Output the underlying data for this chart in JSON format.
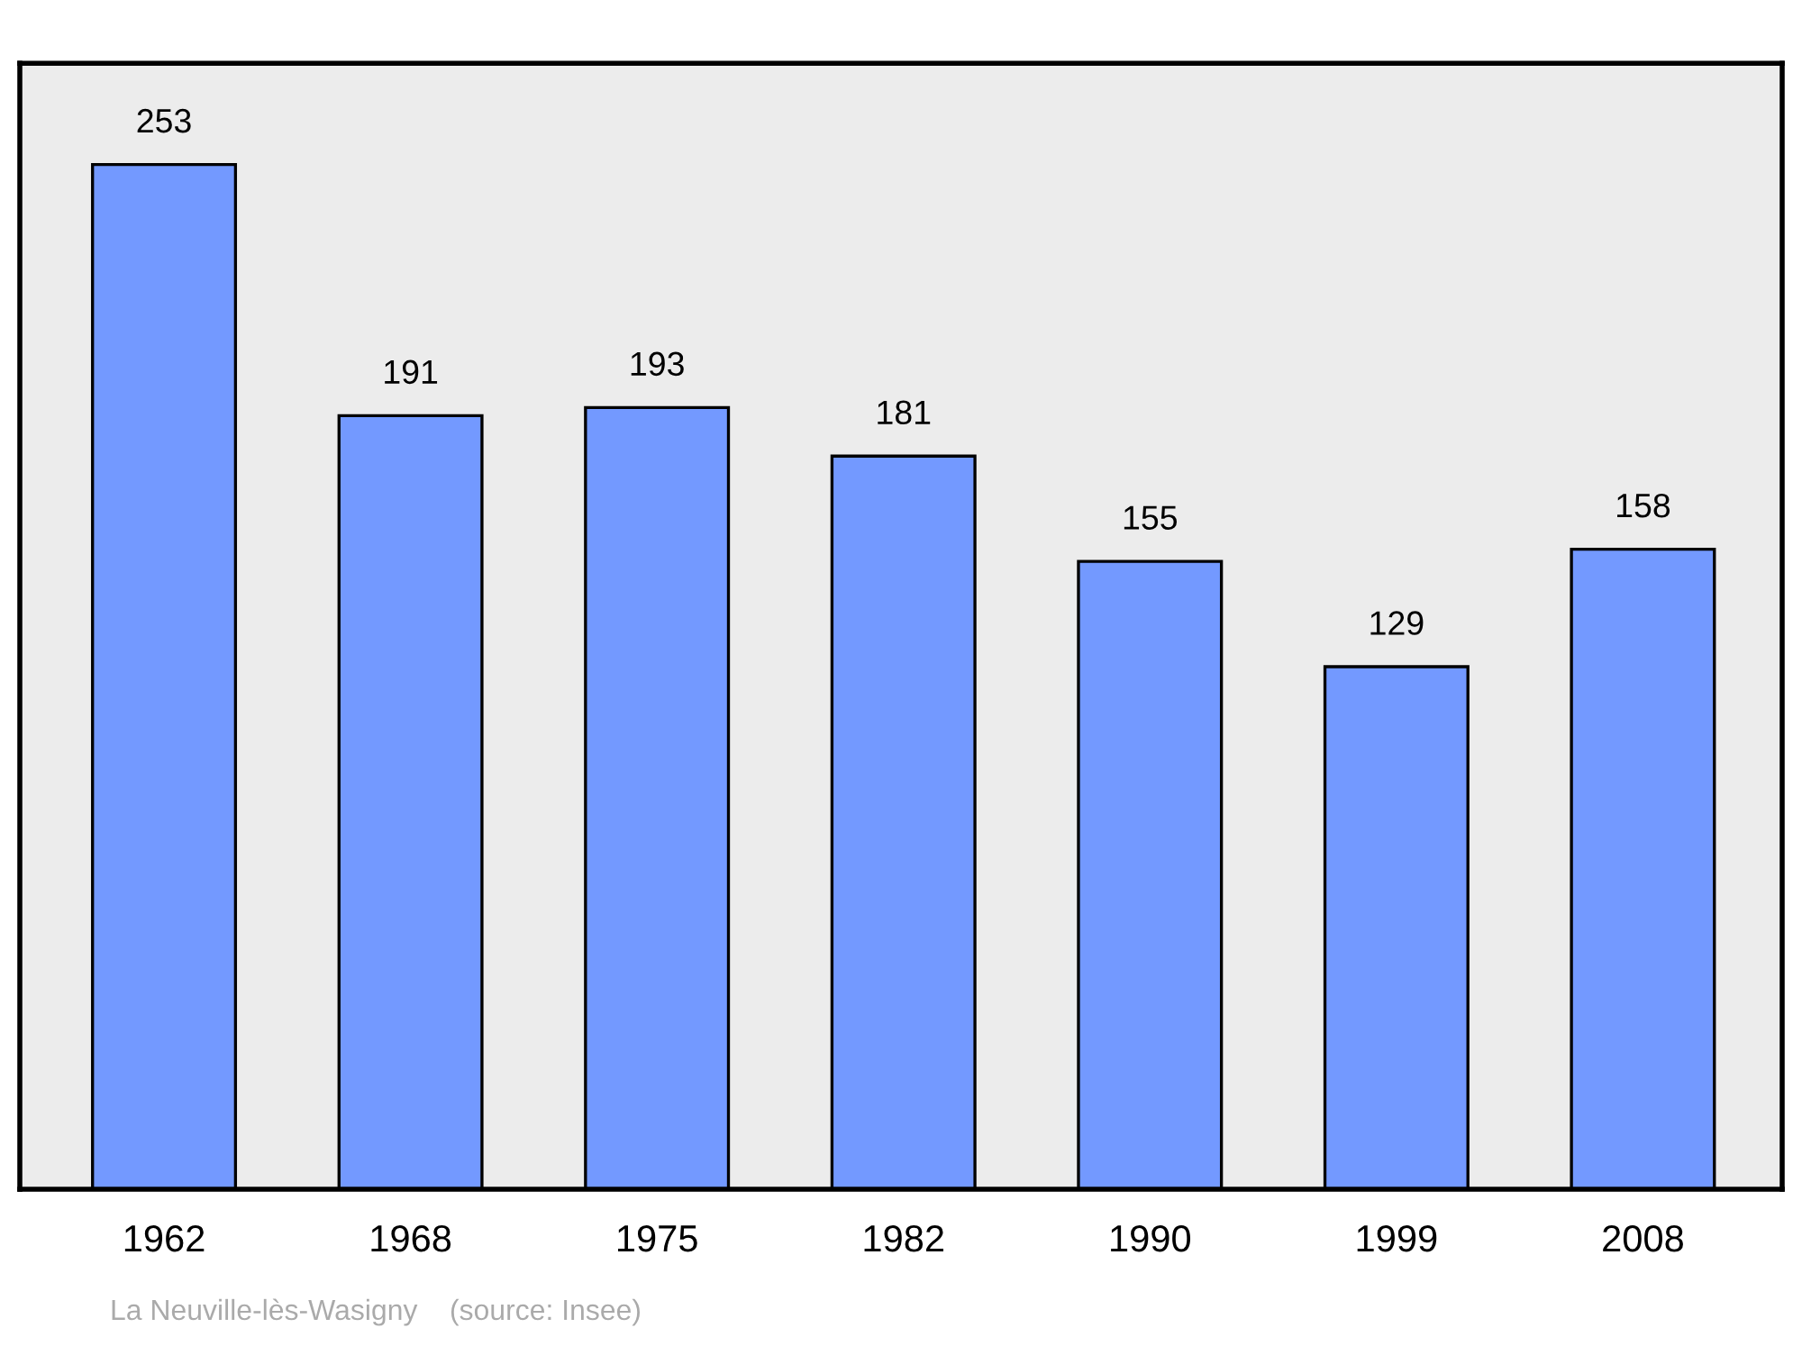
{
  "chart_data": {
    "type": "bar",
    "categories": [
      "1962",
      "1968",
      "1975",
      "1982",
      "1990",
      "1999",
      "2008"
    ],
    "values": [
      253,
      191,
      193,
      181,
      155,
      129,
      158
    ],
    "color": "#7399ff",
    "ylim": [
      0,
      278
    ],
    "data_labels": true,
    "grid": false,
    "legend": false,
    "annotations": [
      "La Neuville-lès-Wasigny    (source: Insee)"
    ]
  }
}
